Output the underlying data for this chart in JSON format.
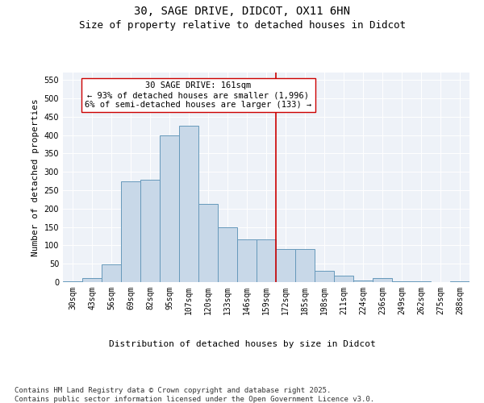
{
  "title1": "30, SAGE DRIVE, DIDCOT, OX11 6HN",
  "title2": "Size of property relative to detached houses in Didcot",
  "xlabel": "Distribution of detached houses by size in Didcot",
  "ylabel": "Number of detached properties",
  "bin_labels": [
    "30sqm",
    "43sqm",
    "56sqm",
    "69sqm",
    "82sqm",
    "95sqm",
    "107sqm",
    "120sqm",
    "133sqm",
    "146sqm",
    "159sqm",
    "172sqm",
    "185sqm",
    "198sqm",
    "211sqm",
    "224sqm",
    "236sqm",
    "249sqm",
    "262sqm",
    "275sqm",
    "288sqm"
  ],
  "bar_heights": [
    3,
    10,
    48,
    275,
    278,
    400,
    425,
    213,
    150,
    117,
    117,
    90,
    90,
    30,
    17,
    5,
    10,
    3,
    2,
    1,
    2
  ],
  "bar_color": "#c8d8e8",
  "bar_edgecolor": "#6699bb",
  "vline_x": 10.5,
  "vline_color": "#cc0000",
  "annotation_text": "30 SAGE DRIVE: 161sqm\n← 93% of detached houses are smaller (1,996)\n6% of semi-detached houses are larger (133) →",
  "annotation_box_color": "#ffffff",
  "annotation_box_edgecolor": "#cc0000",
  "ylim": [
    0,
    570
  ],
  "yticks": [
    0,
    50,
    100,
    150,
    200,
    250,
    300,
    350,
    400,
    450,
    500,
    550
  ],
  "background_color": "#eef2f8",
  "footer_text": "Contains HM Land Registry data © Crown copyright and database right 2025.\nContains public sector information licensed under the Open Government Licence v3.0.",
  "title1_fontsize": 10,
  "title2_fontsize": 9,
  "xlabel_fontsize": 8,
  "ylabel_fontsize": 8,
  "annotation_fontsize": 7.5,
  "footer_fontsize": 6.5,
  "tick_fontsize": 7
}
